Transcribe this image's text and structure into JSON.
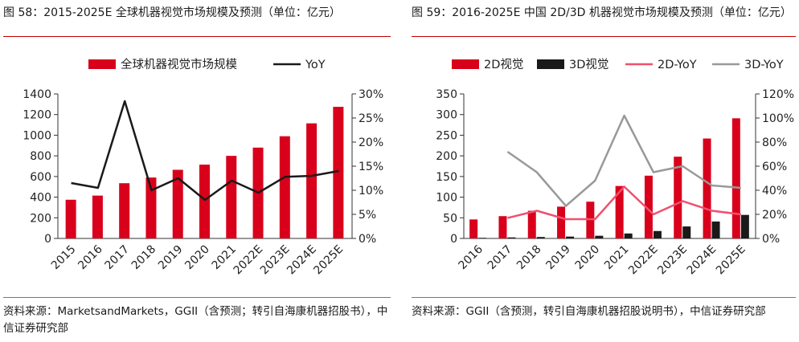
{
  "left": {
    "title": "图 58：2015-2025E 全球机器视觉市场规模及预测（单位：亿元）",
    "source": "资料来源：MarketsandMarkets，GGII（含预测；转引自海康机器招股书），中信证券研究部"
  },
  "right": {
    "title": "图 59：2016-2025E 中国 2D/3D 机器视觉市场规模及预测（单位：亿元）",
    "source": "资料来源：GGII（含预测，转引自海康机器招股说明书），中信证券研究部"
  },
  "colors": {
    "red": "#d9001b",
    "black": "#1a1a1a",
    "pink": "#f0506e",
    "gray": "#999999"
  },
  "chart_data": [
    {
      "type": "bar",
      "categories": [
        "2015",
        "2016",
        "2017",
        "2018",
        "2019",
        "2020",
        "2021",
        "2022E",
        "2023E",
        "2024E",
        "2025E"
      ],
      "series": [
        {
          "name": "全球机器视觉市场规模",
          "type": "bar",
          "axis": "left",
          "color": "#d9001b",
          "values": [
            375,
            415,
            535,
            590,
            665,
            715,
            800,
            880,
            990,
            1115,
            1275
          ]
        },
        {
          "name": "YoY",
          "type": "line",
          "axis": "right",
          "color": "#1a1a1a",
          "values": [
            11.5,
            10.5,
            28.5,
            10.0,
            12.5,
            8.0,
            12.0,
            9.5,
            12.8,
            13.0,
            14.0
          ]
        }
      ],
      "ylim": [
        0,
        1400
      ],
      "yticks": [
        0,
        200,
        400,
        600,
        800,
        1000,
        1200,
        1400
      ],
      "y2lim": [
        0,
        30
      ],
      "y2ticks": [
        "0%",
        "5%",
        "10%",
        "15%",
        "20%",
        "25%",
        "30%"
      ],
      "legend": "top"
    },
    {
      "type": "bar",
      "categories": [
        "2016",
        "2017",
        "2018",
        "2019",
        "2020",
        "2021",
        "2022E",
        "2023E",
        "2024E",
        "2025E"
      ],
      "series": [
        {
          "name": "2D视觉",
          "type": "bar",
          "axis": "left",
          "color": "#d9001b",
          "values": [
            46,
            54,
            67,
            77,
            89,
            127,
            152,
            198,
            242,
            291
          ]
        },
        {
          "name": "3D视觉",
          "type": "bar",
          "axis": "left",
          "color": "#1a1a1a",
          "values": [
            1.5,
            2.5,
            3.5,
            4.5,
            6.5,
            12,
            18,
            29,
            41,
            57
          ]
        },
        {
          "name": "2D-YoY",
          "type": "line",
          "axis": "right",
          "color": "#f0506e",
          "values": [
            null,
            17,
            23,
            16,
            16,
            43,
            20,
            31,
            23,
            20
          ]
        },
        {
          "name": "3D-YoY",
          "type": "line",
          "axis": "right",
          "color": "#999999",
          "values": [
            null,
            72,
            55,
            27,
            48,
            102,
            55,
            60,
            44,
            42
          ]
        }
      ],
      "ylim": [
        0,
        350
      ],
      "yticks": [
        0,
        50,
        100,
        150,
        200,
        250,
        300,
        350
      ],
      "y2lim": [
        0,
        120
      ],
      "y2ticks": [
        "0%",
        "20%",
        "40%",
        "60%",
        "80%",
        "100%",
        "120%"
      ],
      "legend": "top"
    }
  ]
}
